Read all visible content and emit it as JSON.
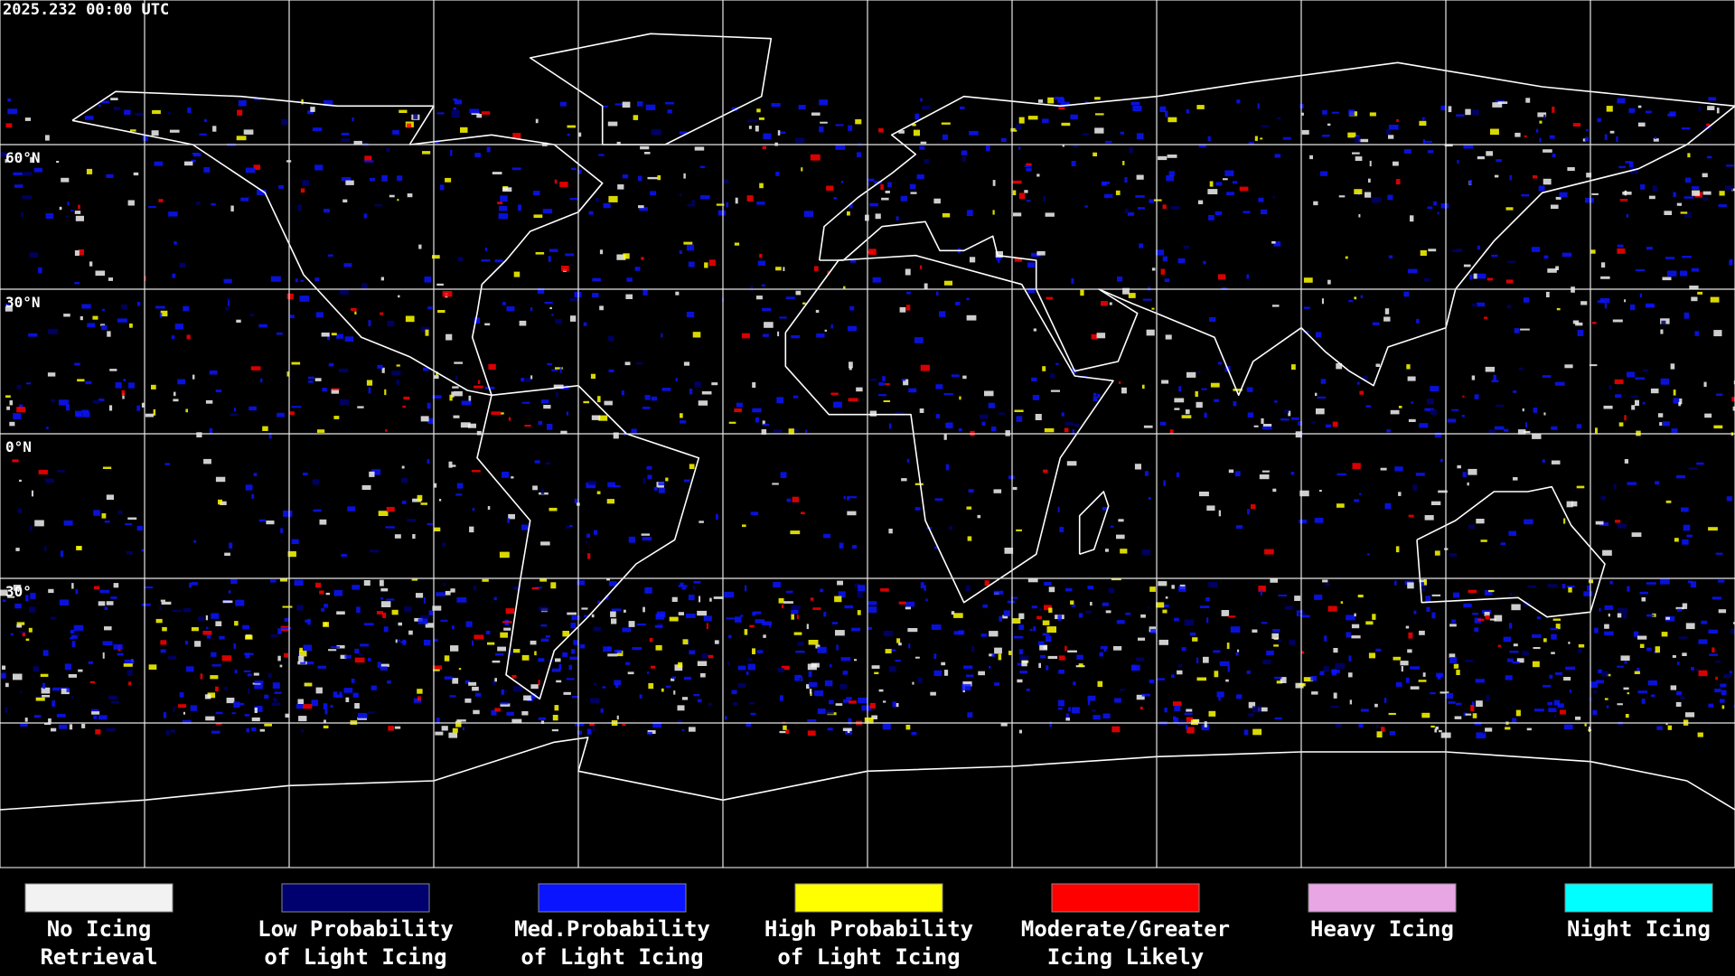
{
  "header": {
    "timestamp": "2025.232 00:00 UTC"
  },
  "map": {
    "latitude_labels": [
      "60°N",
      "30°N",
      "0°N",
      "30°"
    ]
  },
  "legend": {
    "items": [
      {
        "lines": [
          "No Icing",
          "Retrieval"
        ],
        "color": "#f2f2f2"
      },
      {
        "lines": [
          "Low Probability",
          "of Light Icing"
        ],
        "color": "#00006e"
      },
      {
        "lines": [
          "Med.Probability",
          "of Light Icing"
        ],
        "color": "#0a14ff"
      },
      {
        "lines": [
          "High Probability",
          "of Light Icing"
        ],
        "color": "#ffff00"
      },
      {
        "lines": [
          "Moderate/Greater",
          "Icing Likely"
        ],
        "color": "#ff0000"
      },
      {
        "lines": [
          "Heavy Icing"
        ],
        "color": "#e8a6e4"
      },
      {
        "lines": [
          "Night Icing"
        ],
        "color": "#00ffff"
      }
    ]
  }
}
